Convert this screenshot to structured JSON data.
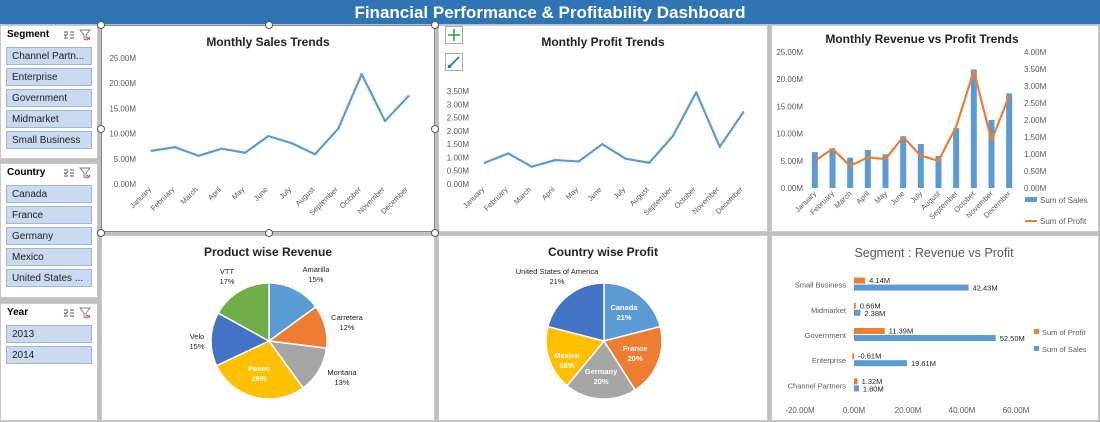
{
  "title": "Financial Performance & Profitability Dashboard",
  "slicers": [
    {
      "label": "Segment",
      "items": [
        "Channel Partn...",
        "Enterprise",
        "Government",
        "Midmarket",
        "Small Business"
      ]
    },
    {
      "label": "Country",
      "items": [
        "Canada",
        "France",
        "Germany",
        "Mexico",
        "United States ..."
      ]
    },
    {
      "label": "Year",
      "items": [
        "2013",
        "2014"
      ]
    }
  ],
  "icons": {
    "multi_select": "multi-select-icon",
    "clear_filter": "clear-filter-icon",
    "add": "plus-icon",
    "style": "brush-icon"
  },
  "colors": {
    "title_bar": "#2f75b5",
    "line": "#5b9bd5",
    "bar": "#5b9bd5",
    "profit": "#ed7d31",
    "slicer_item": "#c9daf1"
  },
  "months": [
    "January",
    "February",
    "March",
    "April",
    "May",
    "June",
    "July",
    "August",
    "September",
    "October",
    "November",
    "December"
  ],
  "chart_data": [
    {
      "type": "line",
      "title": "Monthly Sales Trends",
      "x": [
        "January",
        "February",
        "March",
        "April",
        "May",
        "June",
        "July",
        "August",
        "September",
        "October",
        "November",
        "December"
      ],
      "series": [
        {
          "values": [
            6.6,
            7.3,
            5.6,
            7.0,
            6.2,
            9.5,
            8.1,
            5.9,
            11.0,
            21.8,
            12.5,
            17.4
          ]
        }
      ],
      "ylim": [
        0,
        25
      ],
      "yticks": [
        "0.00M",
        "5.00M",
        "10.00M",
        "15.00M",
        "20.00M",
        "25.00M"
      ]
    },
    {
      "type": "line",
      "title": "Monthly Profit Trends",
      "x": [
        "January",
        "February",
        "March",
        "April",
        "May",
        "June",
        "July",
        "August",
        "September",
        "October",
        "November",
        "December"
      ],
      "series": [
        {
          "values": [
            0.8,
            1.15,
            0.65,
            0.9,
            0.85,
            1.5,
            0.95,
            0.8,
            1.8,
            3.45,
            1.4,
            2.7
          ]
        }
      ],
      "ylim": [
        0,
        3.5
      ],
      "yticks": [
        "0.00M",
        "0.50M",
        "1.00M",
        "1.50M",
        "2.00M",
        "2.50M",
        "3.00M",
        "3.50M"
      ]
    },
    {
      "type": "bar+line",
      "title": "Monthly Revenue vs Profit Trends",
      "x": [
        "January",
        "February",
        "March",
        "April",
        "May",
        "June",
        "July",
        "August",
        "September",
        "October",
        "November",
        "December"
      ],
      "series": [
        {
          "name": "Sum of  Sales",
          "type": "bar",
          "axis": "left",
          "values": [
            6.6,
            7.3,
            5.6,
            7.0,
            6.2,
            9.5,
            8.1,
            5.9,
            11.0,
            21.8,
            12.5,
            17.4
          ]
        },
        {
          "name": "Sum of Profit",
          "type": "line",
          "axis": "right",
          "values": [
            0.8,
            1.15,
            0.65,
            0.9,
            0.85,
            1.5,
            0.95,
            0.8,
            1.8,
            3.45,
            1.4,
            2.7
          ]
        }
      ],
      "ylim_left": [
        0,
        25
      ],
      "ylim_right": [
        0,
        4
      ],
      "yticks_left": [
        "0.00M",
        "5.00M",
        "10.00M",
        "15.00M",
        "20.00M",
        "25.00M"
      ],
      "yticks_right": [
        "0.00M",
        "0.50M",
        "1.00M",
        "1.50M",
        "2.00M",
        "2.50M",
        "3.00M",
        "3.50M",
        "4.00M"
      ],
      "legend": "right"
    },
    {
      "type": "pie",
      "title": "Product wise Revenue",
      "slices": [
        {
          "label": "Amarilla",
          "pct": 15,
          "value": "15%",
          "color": "#5b9bd5"
        },
        {
          "label": "Carretera",
          "pct": 12,
          "value": "12%",
          "color": "#ed7d31"
        },
        {
          "label": "Montana",
          "pct": 13,
          "value": "13%",
          "color": "#a5a5a5"
        },
        {
          "label": "Paseo",
          "pct": 28,
          "value": "28%",
          "color": "#ffc000"
        },
        {
          "label": "Velo",
          "pct": 15,
          "value": "15%",
          "color": "#4472c4"
        },
        {
          "label": "VTT",
          "pct": 17,
          "value": "17%",
          "color": "#70ad47"
        }
      ]
    },
    {
      "type": "pie",
      "title": "Country wise Profit",
      "slices": [
        {
          "label": "Canada",
          "pct": 21,
          "value": "21%",
          "color": "#5b9bd5"
        },
        {
          "label": "France",
          "pct": 20,
          "value": "20%",
          "color": "#ed7d31"
        },
        {
          "label": "Germany",
          "pct": 20,
          "value": "20%",
          "color": "#a5a5a5"
        },
        {
          "label": "Mexico",
          "pct": 18,
          "value": "18%",
          "color": "#ffc000"
        },
        {
          "label": "United States of America",
          "pct": 21,
          "value": "21%",
          "color": "#4472c4"
        }
      ]
    },
    {
      "type": "bar-horizontal",
      "title": "Segment : Revenue vs Profit",
      "categories": [
        "Small Business",
        "Midmarket",
        "Government",
        "Enterprise",
        "Channel Partners"
      ],
      "series": [
        {
          "name": "Sum of Profit",
          "values": [
            4.14,
            0.66,
            11.39,
            -0.61,
            1.32
          ],
          "labels": [
            "4.14M",
            "0.66M",
            "11.39M",
            "-0.61M",
            "1.32M"
          ]
        },
        {
          "name": "Sum of  Sales",
          "values": [
            42.43,
            2.38,
            52.5,
            19.61,
            1.8
          ],
          "labels": [
            "42.43M",
            "2.38M",
            "52.50M",
            "19.61M",
            "1.80M"
          ]
        }
      ],
      "xlim": [
        -20,
        60
      ],
      "xticks": [
        "-20.00M",
        "0.00M",
        "20.00M",
        "40.00M",
        "60.00M"
      ],
      "legend": "right"
    }
  ]
}
